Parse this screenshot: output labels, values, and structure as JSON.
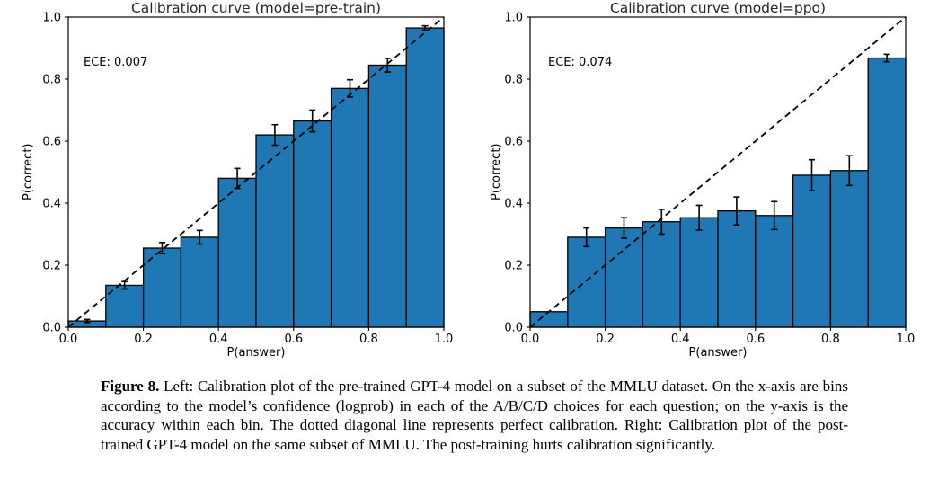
{
  "figure": {
    "caption_label": "Figure 8.",
    "caption_text": " Left: Calibration plot of the pre-trained GPT-4 model on a subset of the MMLU dataset. On the x-axis are bins according to the model’s confidence (logprob) in each of the A/B/C/D choices for each question; on the y-axis is the accuracy within each bin. The dotted diagonal line represents perfect calibration. Right: Calibration plot of the post-trained GPT-4 model on the same subset of MMLU. The post-training hurts calibration significantly."
  },
  "chart_data": [
    {
      "type": "bar",
      "title": "Calibration curve (model=pre-train)",
      "annotation": "ECE: 0.007",
      "xlabel": "P(answer)",
      "ylabel": "P(correct)",
      "xlim": [
        0.0,
        1.0
      ],
      "ylim": [
        0.0,
        1.0
      ],
      "xticks": [
        "0.0",
        "0.2",
        "0.4",
        "0.6",
        "0.8",
        "1.0"
      ],
      "yticks": [
        "0.0",
        "0.2",
        "0.4",
        "0.6",
        "0.8",
        "1.0"
      ],
      "bin_edges": [
        0.0,
        0.1,
        0.2,
        0.3,
        0.4,
        0.5,
        0.6,
        0.7,
        0.8,
        0.9,
        1.0
      ],
      "values": [
        0.02,
        0.135,
        0.255,
        0.29,
        0.48,
        0.62,
        0.665,
        0.77,
        0.845,
        0.965
      ],
      "errors": [
        0.005,
        0.012,
        0.018,
        0.022,
        0.032,
        0.033,
        0.035,
        0.028,
        0.022,
        0.007
      ],
      "diagonal_reference_line": true,
      "grid": false,
      "legend": "none",
      "bar_color": "#1f77b4",
      "bar_edge_color": "#000000",
      "line_color": "#000000"
    },
    {
      "type": "bar",
      "title": "Calibration curve (model=ppo)",
      "annotation": "ECE: 0.074",
      "xlabel": "P(answer)",
      "ylabel": "P(correct)",
      "xlim": [
        0.0,
        1.0
      ],
      "ylim": [
        0.0,
        1.0
      ],
      "xticks": [
        "0.0",
        "0.2",
        "0.4",
        "0.6",
        "0.8",
        "1.0"
      ],
      "yticks": [
        "0.0",
        "0.2",
        "0.4",
        "0.6",
        "0.8",
        "1.0"
      ],
      "bin_edges": [
        0.0,
        0.1,
        0.2,
        0.3,
        0.4,
        0.5,
        0.6,
        0.7,
        0.8,
        0.9,
        1.0
      ],
      "values": [
        0.05,
        0.29,
        0.32,
        0.34,
        0.353,
        0.375,
        0.36,
        0.49,
        0.505,
        0.868
      ],
      "errors": [
        0,
        0.03,
        0.033,
        0.04,
        0.04,
        0.045,
        0.045,
        0.05,
        0.048,
        0.012
      ],
      "diagonal_reference_line": true,
      "grid": false,
      "legend": "none",
      "bar_color": "#1f77b4",
      "bar_edge_color": "#000000",
      "line_color": "#000000"
    }
  ]
}
